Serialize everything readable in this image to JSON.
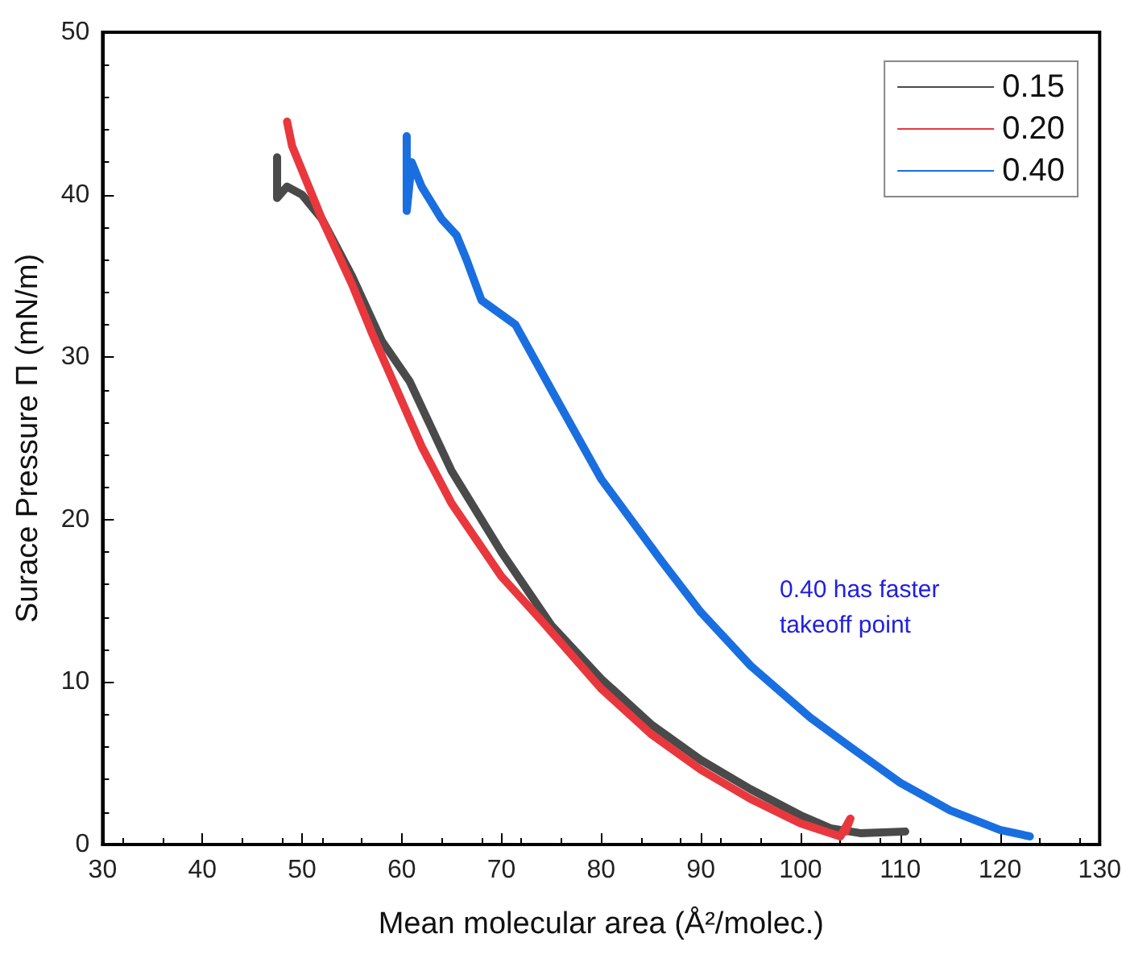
{
  "chart_data": {
    "type": "line",
    "xlabel": "Mean molecular area (Å²/molec.)",
    "ylabel": "Surace Pressure Π (mN/m)",
    "xlim": [
      30,
      130
    ],
    "xticks": [
      30,
      40,
      50,
      60,
      70,
      80,
      90,
      100,
      110,
      120,
      130
    ],
    "ylim": [
      0,
      50
    ],
    "yticks": [
      0,
      10,
      20,
      30,
      40,
      50
    ],
    "legend": "top right",
    "marker": "none",
    "line_style": "solid",
    "grid": false,
    "annotations": [
      "0.40 has faster takeoff point"
    ],
    "series": [
      {
        "name": "0.15",
        "color": "#4a4a4a",
        "x": [
          47.5,
          47.5,
          48.5,
          50,
          52,
          55,
          58,
          60.8,
          65,
          70,
          75,
          80,
          85,
          90,
          95,
          100,
          103,
          106,
          110.5
        ],
        "values": [
          42.3,
          39.8,
          40.5,
          40,
          38.5,
          35,
          31,
          28.5,
          23,
          18,
          13.5,
          10.2,
          7.4,
          5.2,
          3.4,
          1.8,
          1,
          0.7,
          0.8
        ]
      },
      {
        "name": "0.20",
        "color": "#e8383d",
        "x": [
          48.5,
          49,
          50,
          52,
          55,
          57,
          59.5,
          62,
          65,
          70,
          74,
          80,
          85,
          90,
          95,
          100,
          104,
          105,
          104.5
        ],
        "values": [
          44.5,
          43,
          41.5,
          38.5,
          34.5,
          31.5,
          28,
          24.5,
          21,
          16.5,
          13.8,
          9.6,
          6.8,
          4.6,
          2.8,
          1.3,
          0.5,
          1.6,
          0.8
        ]
      },
      {
        "name": "0.40",
        "color": "#1a6fe0",
        "x": [
          60.5,
          60.5,
          61,
          62,
          64,
          65.5,
          66.5,
          68,
          71.4,
          75,
          80,
          86,
          90,
          95,
          101,
          105,
          110,
          115,
          120,
          123
        ],
        "values": [
          43.6,
          39,
          42,
          40.5,
          38.5,
          37.5,
          36,
          33.5,
          32,
          28,
          22.5,
          17.5,
          14.3,
          11,
          7.8,
          6,
          3.8,
          2.1,
          0.9,
          0.5
        ]
      }
    ]
  }
}
